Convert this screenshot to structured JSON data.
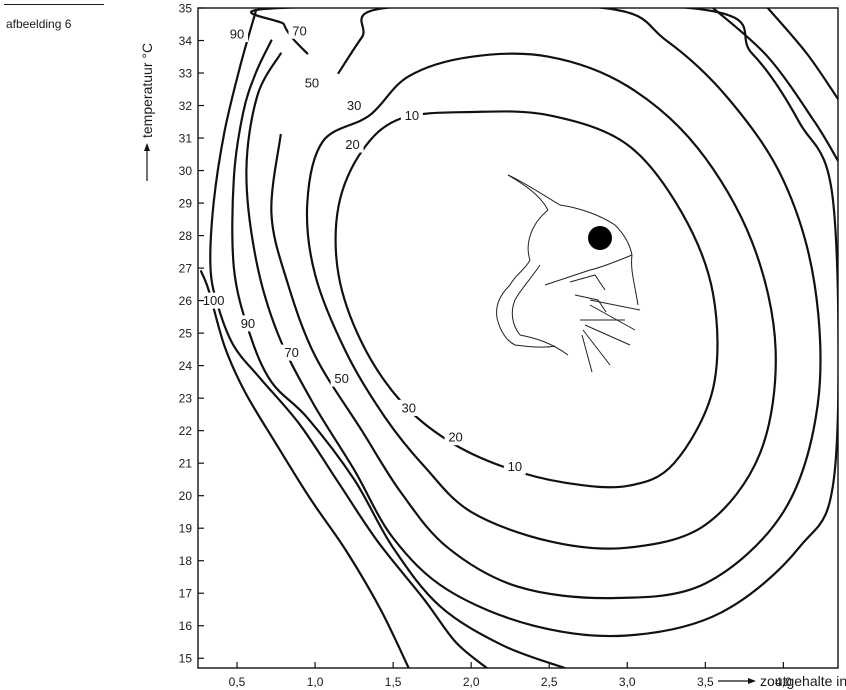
{
  "figure_label": "afbeelding 6",
  "chart_data": {
    "type": "contour",
    "xlabel": "zoutgehalte in %",
    "ylabel": "temperatuur °C",
    "xlim": [
      0.25,
      4.35
    ],
    "ylim": [
      14.7,
      35.0
    ],
    "x_ticks": [
      0.5,
      1.0,
      1.5,
      2.0,
      2.5,
      3.0,
      3.5,
      4.0
    ],
    "x_tick_labels": [
      "0,5",
      "1,0",
      "1,5",
      "2,0",
      "2,5",
      "3,0",
      "3,5",
      "4,0"
    ],
    "y_ticks": [
      15,
      16,
      17,
      18,
      19,
      20,
      21,
      22,
      23,
      24,
      25,
      26,
      27,
      28,
      29,
      30,
      31,
      32,
      33,
      34,
      35
    ],
    "y_tick_labels": [
      "15",
      "16",
      "17",
      "18",
      "19",
      "20",
      "21",
      "22",
      "23",
      "24",
      "25",
      "26",
      "27",
      "28",
      "29",
      "30",
      "31",
      "32",
      "33",
      "34",
      "35"
    ],
    "grid": false,
    "contours": [
      {
        "level": "10",
        "labels": [
          [
            1.62,
            31.7
          ],
          [
            2.28,
            20.9
          ]
        ],
        "points": [
          [
            2.0,
            31.8
          ],
          [
            2.5,
            31.7
          ],
          [
            3.0,
            30.8
          ],
          [
            3.35,
            28.7
          ],
          [
            3.55,
            26.2
          ],
          [
            3.55,
            23.3
          ],
          [
            3.3,
            21.0
          ],
          [
            3.0,
            20.3
          ],
          [
            2.6,
            20.4
          ],
          [
            2.2,
            20.9
          ],
          [
            1.85,
            21.7
          ],
          [
            1.55,
            22.9
          ],
          [
            1.3,
            24.7
          ],
          [
            1.15,
            26.8
          ],
          [
            1.15,
            28.9
          ],
          [
            1.3,
            30.6
          ],
          [
            1.55,
            31.6
          ]
        ]
      },
      {
        "level": "20",
        "labels": [
          [
            1.24,
            30.8
          ],
          [
            1.9,
            21.8
          ]
        ],
        "points": [
          [
            1.35,
            31.7
          ],
          [
            1.6,
            32.9
          ],
          [
            2.0,
            33.5
          ],
          [
            2.5,
            33.5
          ],
          [
            3.0,
            32.6
          ],
          [
            3.45,
            30.7
          ],
          [
            3.8,
            27.8
          ],
          [
            3.95,
            24.5
          ],
          [
            3.85,
            21.3
          ],
          [
            3.5,
            19.1
          ],
          [
            3.0,
            18.4
          ],
          [
            2.5,
            18.6
          ],
          [
            2.0,
            19.5
          ],
          [
            1.7,
            20.9
          ],
          [
            1.45,
            22.4
          ],
          [
            1.2,
            24.4
          ],
          [
            1.0,
            26.8
          ],
          [
            0.95,
            29.0
          ],
          [
            1.05,
            30.9
          ]
        ]
      },
      {
        "level": "30",
        "labels": [
          [
            1.25,
            32.0
          ],
          [
            1.6,
            22.7
          ]
        ],
        "points": [
          [
            1.15,
            33.0
          ],
          [
            1.3,
            34.1
          ],
          [
            1.45,
            35.0
          ],
          [
            2.85,
            35.0
          ],
          [
            3.25,
            34.0
          ],
          [
            3.65,
            32.2
          ],
          [
            4.0,
            29.7
          ],
          [
            4.2,
            26.5
          ],
          [
            4.22,
            22.8
          ],
          [
            4.0,
            19.5
          ],
          [
            3.5,
            17.3
          ],
          [
            2.9,
            16.85
          ],
          [
            2.3,
            17.2
          ],
          [
            1.85,
            18.4
          ],
          [
            1.55,
            20.1
          ],
          [
            1.3,
            22.0
          ],
          [
            1.0,
            24.3
          ],
          [
            0.82,
            26.6
          ],
          [
            0.72,
            28.7
          ],
          [
            0.78,
            31.1
          ]
        ]
      },
      {
        "level": "50",
        "labels": [
          [
            0.98,
            32.7
          ],
          [
            1.17,
            23.6
          ]
        ],
        "points": [
          [
            0.95,
            33.6
          ],
          [
            0.85,
            34.1
          ],
          [
            0.8,
            34.5
          ],
          [
            0.78,
            35.0
          ],
          [
            3.4,
            35.0
          ],
          [
            3.8,
            33.6
          ],
          [
            4.1,
            31.5
          ],
          [
            4.32,
            29.0
          ],
          [
            4.33,
            20.8
          ],
          [
            4.1,
            18.4
          ],
          [
            3.6,
            16.4
          ],
          [
            3.0,
            15.7
          ],
          [
            2.4,
            16.0
          ],
          [
            1.85,
            17.1
          ],
          [
            1.5,
            18.7
          ],
          [
            1.25,
            20.8
          ],
          [
            0.98,
            22.9
          ],
          [
            0.76,
            25.0
          ],
          [
            0.62,
            27.3
          ],
          [
            0.56,
            30.0
          ],
          [
            0.63,
            32.3
          ],
          [
            0.78,
            33.6
          ]
        ]
      },
      {
        "level": "70",
        "labels": [
          [
            0.9,
            34.3
          ],
          [
            0.85,
            24.4
          ]
        ],
        "points": [
          [
            0.72,
            34.0
          ],
          [
            0.62,
            33.0
          ],
          [
            0.54,
            31.8
          ],
          [
            0.48,
            29.8
          ],
          [
            0.48,
            27.0
          ],
          [
            0.58,
            25.0
          ],
          [
            0.72,
            23.5
          ],
          [
            0.95,
            22.4
          ],
          [
            1.25,
            20.5
          ],
          [
            1.5,
            18.4
          ],
          [
            1.8,
            16.6
          ],
          [
            2.2,
            15.4
          ],
          [
            2.6,
            14.7
          ]
        ]
      },
      {
        "level": "90",
        "labels": [
          [
            0.5,
            34.2
          ],
          [
            0.57,
            25.3
          ]
        ],
        "points": [
          [
            0.62,
            34.9
          ],
          [
            0.52,
            33.2
          ],
          [
            0.42,
            31.2
          ],
          [
            0.35,
            29.0
          ],
          [
            0.33,
            27.0
          ],
          [
            0.38,
            25.8
          ],
          [
            0.48,
            24.6
          ],
          [
            0.65,
            23.6
          ],
          [
            0.9,
            22.2
          ],
          [
            1.15,
            20.4
          ],
          [
            1.4,
            18.6
          ],
          [
            1.7,
            16.8
          ],
          [
            1.9,
            15.5
          ],
          [
            2.1,
            14.7
          ]
        ]
      },
      {
        "level": "100",
        "labels": [
          [
            0.35,
            26.0
          ]
        ],
        "points": [
          [
            0.27,
            26.9
          ],
          [
            0.32,
            26.3
          ],
          [
            0.42,
            24.6
          ],
          [
            0.55,
            23.2
          ],
          [
            0.75,
            21.6
          ],
          [
            0.97,
            19.9
          ],
          [
            1.2,
            18.3
          ],
          [
            1.42,
            16.5
          ],
          [
            1.6,
            14.7
          ]
        ]
      }
    ],
    "outer_curves": [
      {
        "level": "",
        "points": [
          [
            3.55,
            35.0
          ],
          [
            3.9,
            33.5
          ],
          [
            4.2,
            31.5
          ],
          [
            4.35,
            30.3
          ]
        ]
      },
      {
        "level": "",
        "points": [
          [
            3.9,
            35.0
          ],
          [
            4.15,
            33.6
          ],
          [
            4.35,
            32.2
          ]
        ]
      }
    ]
  }
}
